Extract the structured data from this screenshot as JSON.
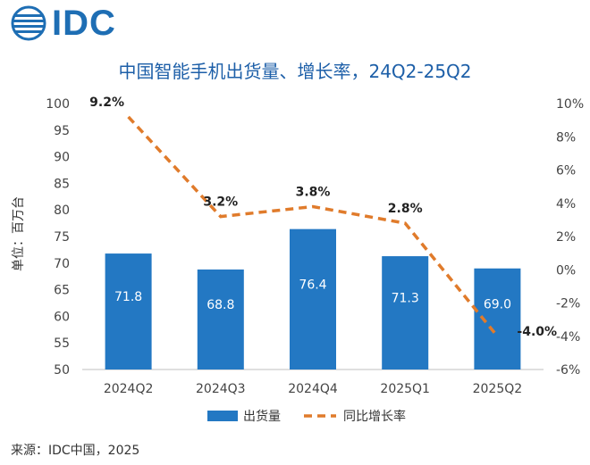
{
  "header": {
    "logo_text": "IDC",
    "logo_icon": "globe-icon"
  },
  "chart_data": {
    "type": "bar+line",
    "title": "中国智能手机出货量、增长率，24Q2-25Q2",
    "ylabel": "单位：百万台",
    "xlabel": "",
    "categories": [
      "2024Q2",
      "2024Q3",
      "2024Q4",
      "2025Q1",
      "2025Q2"
    ],
    "series": [
      {
        "name": "出货量",
        "kind": "bar",
        "axis": "left",
        "values": [
          71.8,
          68.8,
          76.4,
          71.3,
          69.0
        ],
        "labels": [
          "71.8",
          "68.8",
          "76.4",
          "71.3",
          "69.0"
        ],
        "color": "#2378c3"
      },
      {
        "name": "同比增长率",
        "kind": "line",
        "axis": "right",
        "style": "dashed",
        "values": [
          9.2,
          3.2,
          3.8,
          2.8,
          -4.0
        ],
        "labels": [
          "9.2%",
          "3.2%",
          "3.8%",
          "2.8%",
          "-4.0%"
        ],
        "color": "#e07b2b"
      }
    ],
    "ylim": [
      50,
      100
    ],
    "yticks": [
      "50",
      "55",
      "60",
      "65",
      "70",
      "75",
      "80",
      "85",
      "90",
      "95",
      "100"
    ],
    "y2lim": [
      -6,
      10
    ],
    "y2ticks": [
      "-6%",
      "-4%",
      "-2%",
      "0%",
      "2%",
      "4%",
      "6%",
      "8%",
      "10%"
    ],
    "grid": false,
    "legend": "bottom-center"
  },
  "footer": {
    "source": "来源：IDC中国，2025"
  }
}
